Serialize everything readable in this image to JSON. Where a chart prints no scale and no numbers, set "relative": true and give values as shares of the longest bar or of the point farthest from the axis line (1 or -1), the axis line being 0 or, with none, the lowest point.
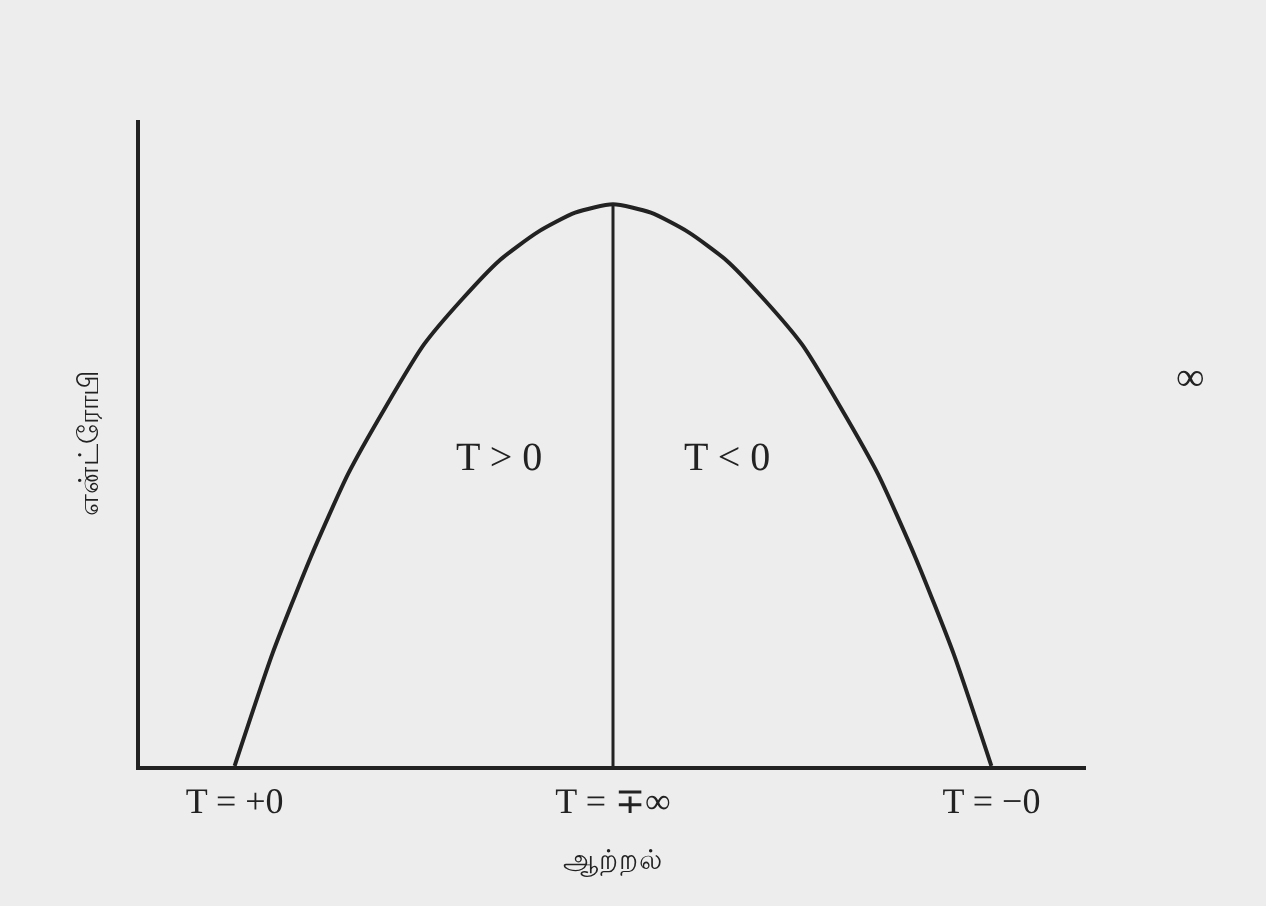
{
  "chart_data": {
    "type": "line",
    "relative": true,
    "tick_labels": "x",
    "grid": false,
    "marker": "none",
    "line_style": "solid",
    "xlabel": "ஆற்றல்",
    "ylabel": "என்ட்ரோபி",
    "categories": [
      "T = +0",
      null,
      null,
      null,
      null,
      null,
      null,
      null,
      null,
      null,
      "T = ∓∞",
      null,
      null,
      null,
      null,
      null,
      null,
      null,
      null,
      null,
      "T = −0"
    ],
    "series": [
      {
        "color": "#222222",
        "values": [
          0,
          0.2,
          0.37,
          0.52,
          0.64,
          0.75,
          0.83,
          0.9,
          0.95,
          0.985,
          1,
          0.985,
          0.95,
          0.9,
          0.83,
          0.75,
          0.64,
          0.52,
          0.37,
          0.2,
          0
        ]
      }
    ],
    "ref_lines": [
      {
        "axis": "x",
        "value": "T = ∓∞",
        "color": "#222222",
        "line_style": "solid"
      }
    ],
    "annotations": [
      "T > 0",
      "T < 0",
      "∞"
    ]
  }
}
